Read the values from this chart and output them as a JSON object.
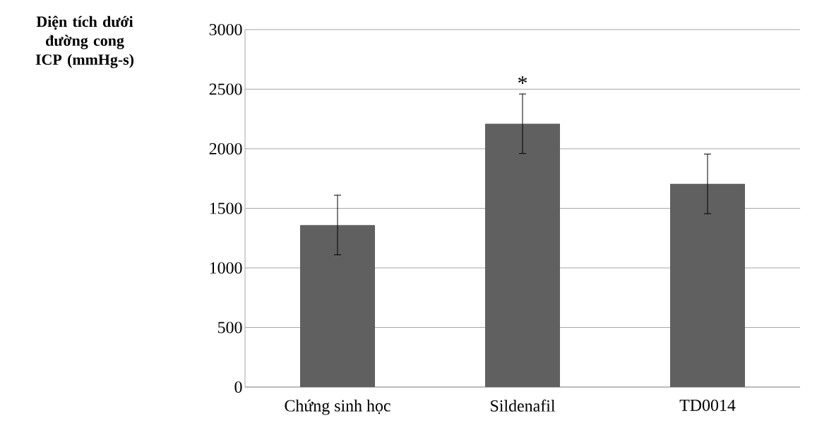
{
  "chart_data": {
    "type": "bar",
    "ylabel": "Diện tích dưới đường cong ICP (mmHg-s)",
    "categories": [
      "Chứng sinh học",
      "Sildenafil",
      "TD0014"
    ],
    "values": [
      1360,
      2210,
      1705
    ],
    "errors": [
      250,
      250,
      250
    ],
    "color": "#606060",
    "ylim": [
      0,
      3000
    ],
    "yticks": [
      0,
      500,
      1000,
      1500,
      2000,
      2500,
      3000
    ],
    "grid": "y",
    "annotations": [
      "*"
    ]
  }
}
